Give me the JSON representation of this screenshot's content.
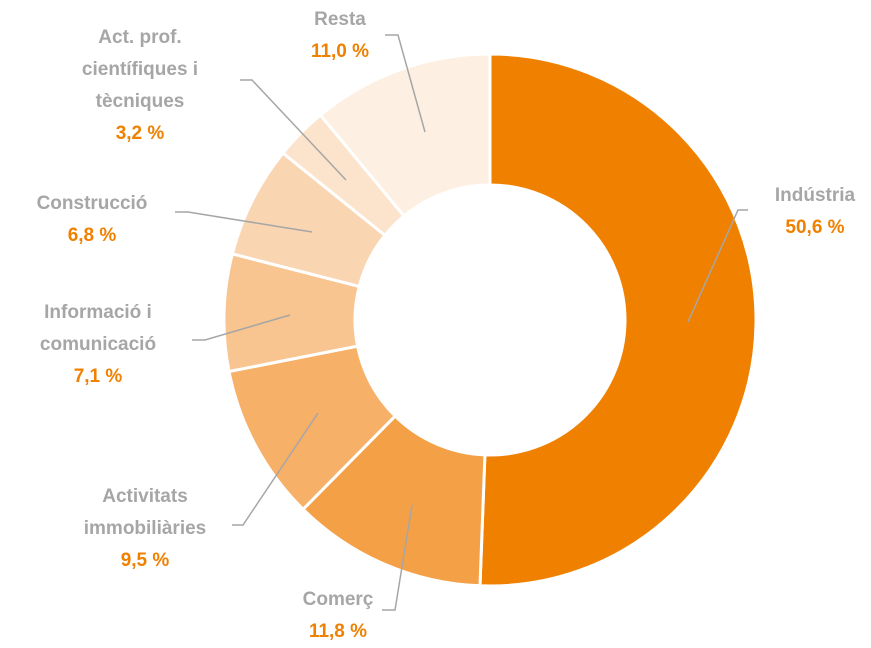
{
  "chart_data": {
    "type": "donut",
    "categories": [
      "Indústria",
      "Comerç",
      "Activitats\nimmobiliàries",
      "Informació i\ncomunicació",
      "Construcció",
      "Act. prof.\ncientífiques i\ntècniques",
      "Resta"
    ],
    "values": [
      50.6,
      11.8,
      9.5,
      7.1,
      6.8,
      3.2,
      11.0
    ],
    "value_labels": [
      "50,6 %",
      "11,8 %",
      "9,5 %",
      "7,1 %",
      "6,8 %",
      "3,2 %",
      "11,0 %"
    ],
    "colors": [
      "#f08000",
      "#f4a047",
      "#f6b068",
      "#f8c490",
      "#fad5b2",
      "#fce3cb",
      "#fdf0e2"
    ]
  }
}
